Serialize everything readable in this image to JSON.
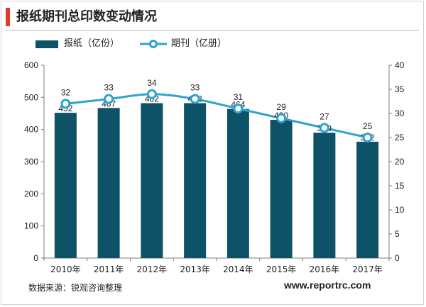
{
  "title": "报纸期刊总印数变动情况",
  "legend": {
    "bar_label": "报纸（亿份）",
    "line_label": "期刊（亿册）"
  },
  "source": "数据来源：锐观咨询整理",
  "website": "www.reportrc.com",
  "colors": {
    "accent": "#e03a2f",
    "bar": "#0d5266",
    "line": "#2ea3cf"
  },
  "chart_data": {
    "type": "bar",
    "categories": [
      "2010年",
      "2011年",
      "2012年",
      "2013年",
      "2014年",
      "2015年",
      "2016年",
      "2017年"
    ],
    "series": [
      {
        "name": "报纸（亿份）",
        "type": "bar",
        "axis": "left",
        "values": [
          452,
          467,
          482,
          482,
          464,
          430,
          390,
          362
        ]
      },
      {
        "name": "期刊（亿册）",
        "type": "line",
        "axis": "right",
        "values": [
          32,
          33,
          34,
          33,
          31,
          29,
          27,
          25
        ]
      }
    ],
    "y_left": {
      "min": 0,
      "max": 600,
      "ticks": [
        0,
        100,
        200,
        300,
        400,
        500,
        600
      ]
    },
    "y_right": {
      "min": 0,
      "max": 40,
      "ticks": [
        0,
        5,
        10,
        15,
        20,
        25,
        30,
        35,
        40
      ]
    },
    "grid": false,
    "legend_position": "top-left"
  }
}
